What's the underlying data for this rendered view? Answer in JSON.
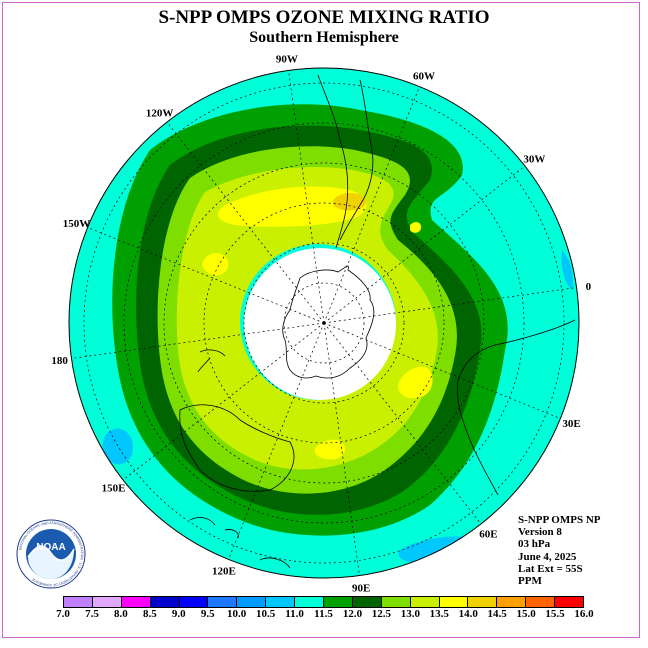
{
  "title": "S-NPP OMPS OZONE MIXING RATIO",
  "subtitle": "Southern Hemisphere",
  "longitude_labels": [
    {
      "text": "90W",
      "lon": -90
    },
    {
      "text": "60W",
      "lon": -60
    },
    {
      "text": "30W",
      "lon": -30
    },
    {
      "text": "0",
      "lon": 0
    },
    {
      "text": "30E",
      "lon": 30
    },
    {
      "text": "60E",
      "lon": 60
    },
    {
      "text": "90E",
      "lon": 90
    },
    {
      "text": "120E",
      "lon": 120
    },
    {
      "text": "150E",
      "lon": 150
    },
    {
      "text": "180",
      "lon": 180
    },
    {
      "text": "150W",
      "lon": -150
    },
    {
      "text": "120W",
      "lon": -120
    }
  ],
  "info": {
    "line1": "S-NPP OMPS NP",
    "line2": "Version 8",
    "line3": "03 hPa",
    "line4": "June 4, 2025",
    "line5": "Lat Ext = 55S",
    "line6": "PPM"
  },
  "logo": {
    "text": "NOAA",
    "ring_text": "NATIONAL OCEANIC AND ATMOSPHERIC ADMINISTRATION · U.S. DEPARTMENT OF COMMERCE"
  },
  "colorbar": {
    "ticks": [
      "7.0",
      "7.5",
      "8.0",
      "8.5",
      "9.0",
      "9.5",
      "10.0",
      "10.5",
      "11.0",
      "11.5",
      "12.0",
      "12.5",
      "13.0",
      "13.5",
      "14.0",
      "14.5",
      "15.0",
      "15.5",
      "16.0"
    ],
    "colors": [
      "#c080ff",
      "#e0a8ff",
      "#ff00ff",
      "#0000cc",
      "#0000ff",
      "#1e78ff",
      "#009bff",
      "#00c8ff",
      "#00ffd8",
      "#00a000",
      "#006400",
      "#7dde00",
      "#c8f000",
      "#ffff00",
      "#f0d200",
      "#ffa000",
      "#ff6400",
      "#ff0000",
      "#8b5a3c"
    ]
  },
  "chart_data": {
    "type": "heatmap",
    "projection": "south polar stereographic",
    "variable": "ozone mixing ratio",
    "unit": "PPM",
    "pressure_level": "03 hPa",
    "date": "June 4, 2025",
    "lat_extent": "55S",
    "levels": [
      7.0,
      7.5,
      8.0,
      8.5,
      9.0,
      9.5,
      10.0,
      10.5,
      11.0,
      11.5,
      12.0,
      12.5,
      13.0,
      13.5,
      14.0,
      14.5,
      15.0,
      15.5,
      16.0
    ],
    "bands": [
      {
        "range": [
          10.5,
          11.0
        ],
        "color": "#00ffd8",
        "region": "outer ring near 55S"
      },
      {
        "range": [
          11.0,
          11.5
        ],
        "color": "#00a000",
        "region": "outer green ring"
      },
      {
        "range": [
          11.5,
          12.0
        ],
        "color": "#006400",
        "region": "dark green ring"
      },
      {
        "range": [
          12.0,
          12.5
        ],
        "color": "#7dde00",
        "region": "mid-latitude ring"
      },
      {
        "range": [
          12.5,
          13.0
        ],
        "color": "#c8f000",
        "region": "main inner ring"
      },
      {
        "range": [
          13.0,
          13.5
        ],
        "color": "#ffff00",
        "region": "patches near 60W-120W and 30E"
      },
      {
        "range": [
          13.5,
          14.0
        ],
        "color": "#f0d200",
        "region": "small patch near 60W"
      },
      {
        "range": [
          10.0,
          10.5
        ],
        "color": "#00c8ff",
        "region": "small patches near 150E and 60E"
      }
    ],
    "missing_region": "polar night (white) around South Pole"
  }
}
